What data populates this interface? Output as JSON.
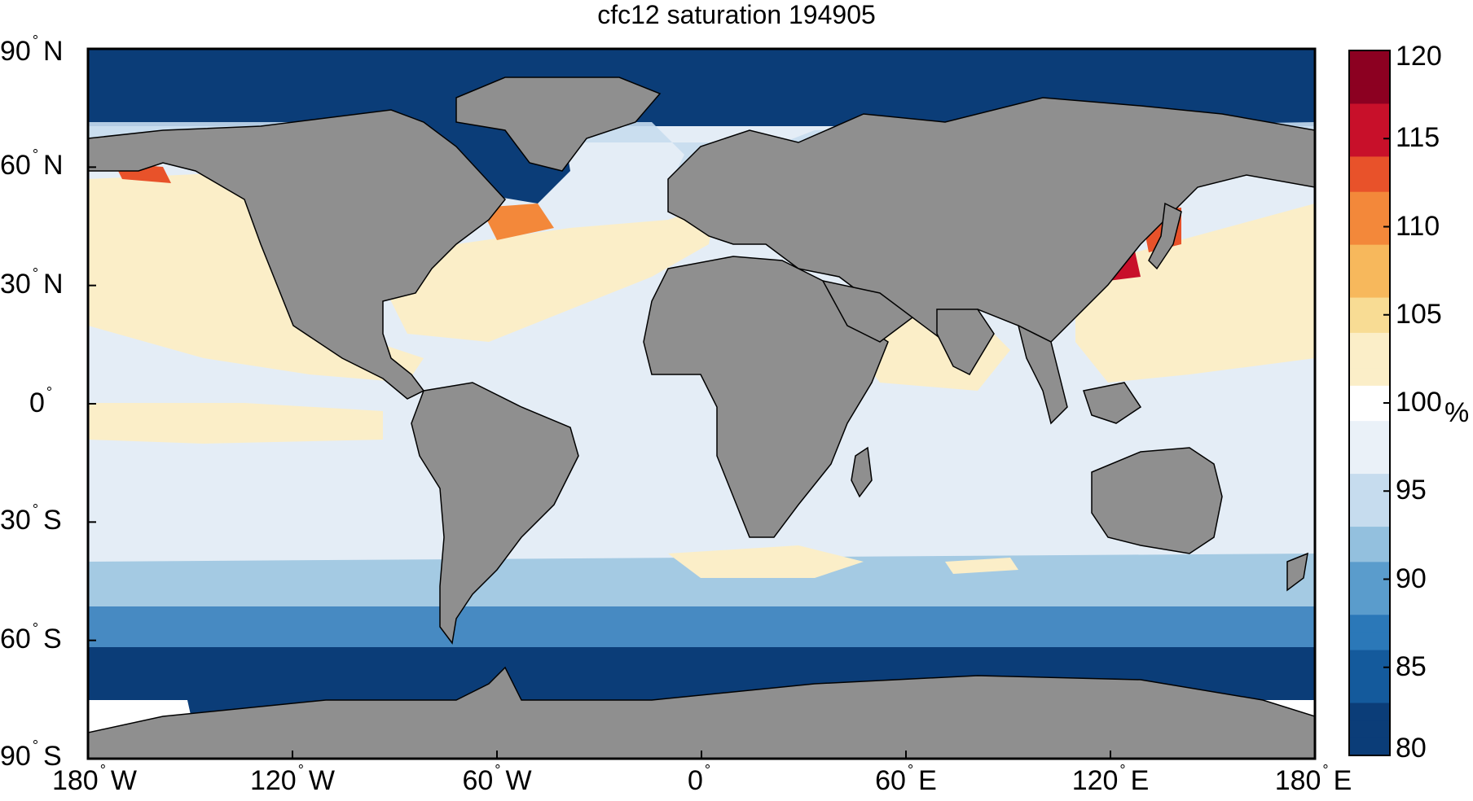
{
  "title": "cfc12 saturation 194905",
  "lat_ticks": [
    {
      "value": 90,
      "label": "90",
      "hemi": "N"
    },
    {
      "value": 60,
      "label": "60",
      "hemi": "N"
    },
    {
      "value": 30,
      "label": "30",
      "hemi": "N"
    },
    {
      "value": 0,
      "label": "0",
      "hemi": ""
    },
    {
      "value": -30,
      "label": "30",
      "hemi": "S"
    },
    {
      "value": -60,
      "label": "60",
      "hemi": "S"
    },
    {
      "value": -90,
      "label": "90",
      "hemi": "S"
    }
  ],
  "lon_ticks": [
    {
      "value": -180,
      "label": "180",
      "hemi": "W"
    },
    {
      "value": -120,
      "label": "120",
      "hemi": "W"
    },
    {
      "value": -60,
      "label": "60",
      "hemi": "W"
    },
    {
      "value": 0,
      "label": "0",
      "hemi": ""
    },
    {
      "value": 60,
      "label": "60",
      "hemi": "E"
    },
    {
      "value": 120,
      "label": "120",
      "hemi": "E"
    },
    {
      "value": 180,
      "label": "180",
      "hemi": "E"
    }
  ],
  "colorbar": {
    "ticks": [
      "120",
      "115",
      "110",
      "105",
      "100",
      "95",
      "90",
      "85",
      "80"
    ],
    "unit": "%",
    "min": 80,
    "max": 120,
    "colors_low_to_high": [
      "#0b3d78",
      "#145a9c",
      "#2b78b8",
      "#5a9ccc",
      "#93c0de",
      "#c6dcee",
      "#eaf1f8",
      "#ffffff",
      "#fbeec8",
      "#f8dc94",
      "#f7b85c",
      "#f3883a",
      "#e8522a",
      "#c8102a",
      "#8c0021"
    ]
  },
  "map": {
    "land_color": "#8f8f8f",
    "ocean_base_color": "#e4edf6"
  }
}
